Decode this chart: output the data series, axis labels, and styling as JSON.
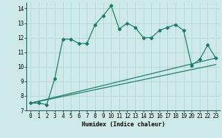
{
  "xlabel": "Humidex (Indice chaleur)",
  "bg_color": "#ceeae8",
  "grid_color": "#b8d8d6",
  "line_color": "#1a7a6e",
  "x_min": -0.5,
  "x_max": 23.5,
  "y_min": 7,
  "y_max": 14.4,
  "series1_x": [
    0,
    1,
    2,
    3,
    4,
    5,
    6,
    7,
    8,
    9,
    10,
    11,
    12,
    13,
    14,
    15,
    16,
    17,
    18,
    19,
    20,
    21,
    22,
    23
  ],
  "series1_y": [
    7.5,
    7.5,
    7.4,
    9.2,
    11.9,
    11.9,
    11.6,
    11.6,
    12.9,
    13.5,
    14.2,
    12.6,
    13.0,
    12.7,
    12.0,
    12.0,
    12.5,
    12.7,
    12.9,
    12.5,
    10.1,
    10.5,
    11.5,
    10.6
  ],
  "series2_x": [
    0,
    23
  ],
  "series2_y": [
    7.5,
    10.6
  ],
  "series3_x": [
    0,
    23
  ],
  "series3_y": [
    7.5,
    10.15
  ],
  "yticks": [
    7,
    8,
    9,
    10,
    11,
    12,
    13,
    14
  ],
  "xticks": [
    0,
    1,
    2,
    3,
    4,
    5,
    6,
    7,
    8,
    9,
    10,
    11,
    12,
    13,
    14,
    15,
    16,
    17,
    18,
    19,
    20,
    21,
    22,
    23
  ],
  "xlabel_fontsize": 6.0,
  "tick_fontsize": 5.5,
  "linewidth": 0.9,
  "markersize": 2.2
}
